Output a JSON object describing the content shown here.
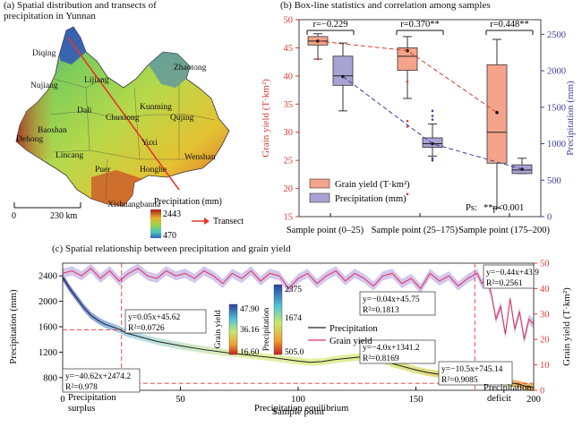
{
  "panel_a": {
    "title_line1": "(a) Spatial distribution and transects of",
    "title_line2": "precipitation in Yunnan",
    "places": [
      "Diqing",
      "Nujiang",
      "Lijiang",
      "Zhaotong",
      "Dali",
      "Kunming",
      "Qujing",
      "Chuxiong",
      "Baoshan",
      "Dehong",
      "Yuxi",
      "Lincang",
      "Wenshan",
      "Honghe",
      "Puer",
      "Xishuangbanna"
    ],
    "scale_bar": {
      "left": "0",
      "right": "230 km"
    },
    "legend_title": "Precipitation (mm)",
    "legend_max": "2443",
    "legend_min": "470",
    "transect_label": "Transect",
    "colors": {
      "transect": "#e8372a",
      "high": "#a21d1d",
      "mid": "#8fd14f",
      "low": "#2f5fbf"
    }
  },
  "panel_b": {
    "title": "(b) Box-line statistics and correlation among samples",
    "ylabel_left": "Grain yield (T·km²)",
    "ylabel_right": "Precipitation (mm)",
    "r_labels": [
      "r=−0.229",
      "r=0.370**",
      "r=0.448**"
    ],
    "legend": [
      "Grain yield (T·km²)",
      "Precipitation (mm)"
    ],
    "ps_note_a": "Ps:",
    "ps_note_b": "**p<0.001",
    "colors": {
      "grain": "#f4a48a",
      "precip": "#a9a3d3",
      "grain_axis": "#d93a2f",
      "precip_axis": "#3b3f98"
    }
  },
  "panel_c": {
    "title": "(c) Spatial relationship between precipitation and grain yield",
    "xlabel": "Sample point",
    "ylabel_left": "Precipitation (mm)",
    "ylabel_right": "Grain yield (T·km²)",
    "legend": [
      "Precipitation",
      "Grain yield"
    ],
    "colorbar_grain": {
      "label": "Grain yield",
      "ticks": [
        "47.90",
        "36.16",
        "16.60"
      ]
    },
    "colorbar_precip": {
      "label": "Precipitation",
      "ticks": [
        "2375",
        "1674",
        "505.0"
      ]
    },
    "annotations": {
      "a1_line1": "y=0.05x+45.62",
      "a1_line2": "R²=0.0726",
      "a2_line1": "y=−40.62x+2474.2",
      "a2_line2": "R²=0.978",
      "a3_line1": "y=−0.04x+45.75",
      "a3_line2": "R²=0.1813",
      "a4_line1": "y=−4.0x+1341.2",
      "a4_line2": "R²=0.8169",
      "a5_line1": "y=−10.5x+745.14",
      "a5_line2": "R²=0.9085",
      "a6_line1": "y=−0.44x+43.9",
      "a6_line2": "R²=0.2561"
    },
    "zone_labels": {
      "surplus_1": "Precipitation",
      "surplus_2": "surplus",
      "equilibrium": "Precipitation equilibrium",
      "deficit_1": "Precipitation",
      "deficit_2": "deficit"
    },
    "colors": {
      "grain_line": "#e0315c",
      "precip_line": "#222222",
      "guide": "#e8372a"
    }
  },
  "chart_data": [
    {
      "type": "box",
      "title": "(b) Box-line statistics and correlation among samples",
      "categories": [
        "Sample point (0–25)",
        "Sample point (25–175)",
        "Sample point (175–200)"
      ],
      "y_left": {
        "label": "Grain yield (T·km²)",
        "lim": [
          15,
          50
        ],
        "ticks": [
          15,
          20,
          25,
          30,
          35,
          40,
          45,
          50
        ]
      },
      "y_right": {
        "label": "Precipitation (mm)",
        "lim": [
          0,
          2700
        ],
        "ticks": [
          0,
          500,
          1000,
          1500,
          2000,
          2500
        ]
      },
      "series": [
        {
          "name": "Grain yield (T·km²)",
          "axis": "left",
          "boxes": [
            {
              "whisker_low": 43,
              "q1": 45.5,
              "median": 46.2,
              "q3": 47,
              "whisker_high": 47.5,
              "mean": 46.2,
              "outliers": [
                43
              ]
            },
            {
              "whisker_low": 36,
              "q1": 41,
              "median": 43.5,
              "q3": 45,
              "whisker_high": 47,
              "mean": 44.5,
              "outliers": [
                39,
                32,
                31,
                19
              ]
            },
            {
              "whisker_low": 16.5,
              "q1": 24.5,
              "median": 30,
              "q3": 42,
              "whisker_high": 46.5,
              "mean": 33.5,
              "outliers": []
            }
          ]
        },
        {
          "name": "Precipitation (mm)",
          "axis": "right",
          "boxes": [
            {
              "whisker_low": 1450,
              "q1": 1800,
              "median": 1930,
              "q3": 2200,
              "whisker_high": 2380,
              "mean": 1920,
              "outliers": []
            },
            {
              "whisker_low": 830,
              "q1": 950,
              "median": 1000,
              "q3": 1080,
              "whisker_high": 1270,
              "mean": 1000,
              "outliers": [
                770,
                800,
                1330,
                1380,
                1450
              ]
            },
            {
              "whisker_low": 590,
              "q1": 590,
              "median": 640,
              "q3": 710,
              "whisker_high": 800,
              "mean": 650,
              "outliers": []
            }
          ]
        }
      ]
    },
    {
      "type": "line",
      "title": "(c) Spatial relationship between precipitation and grain yield",
      "xlabel": "Sample point",
      "xlim": [
        0,
        200
      ],
      "xticks": [
        0,
        50,
        100,
        150,
        200
      ],
      "y_left": {
        "label": "Precipitation (mm)",
        "lim": [
          600,
          2600
        ],
        "ticks": [
          800,
          1200,
          1600,
          2000,
          2400
        ]
      },
      "y_right": {
        "label": "Grain yield (T·km²)",
        "lim": [
          0,
          50
        ],
        "ticks": [
          0,
          10,
          20,
          30,
          40,
          50
        ]
      },
      "guides": {
        "vertical_x": [
          25,
          175
        ],
        "horizontal_precip": [
          1550,
          710
        ]
      },
      "series": [
        {
          "name": "Precipitation",
          "axis": "left",
          "x": [
            0,
            3,
            6,
            9,
            12,
            15,
            18,
            21,
            24,
            27,
            30,
            40,
            50,
            60,
            70,
            80,
            90,
            100,
            105,
            110,
            115,
            120,
            125,
            130,
            135,
            140,
            145,
            150,
            155,
            160,
            165,
            170,
            175,
            178,
            181,
            184,
            187,
            190,
            193,
            196,
            200
          ],
          "y": [
            2380,
            2200,
            2050,
            1900,
            1780,
            1700,
            1640,
            1600,
            1560,
            1500,
            1470,
            1370,
            1300,
            1240,
            1190,
            1150,
            1110,
            1060,
            1040,
            1050,
            1080,
            1100,
            1120,
            1130,
            1100,
            1020,
            970,
            920,
            880,
            850,
            820,
            790,
            800,
            790,
            770,
            760,
            745,
            720,
            700,
            670,
            640
          ]
        },
        {
          "name": "Grain yield",
          "axis": "right",
          "x": [
            0,
            4,
            8,
            12,
            16,
            20,
            24,
            28,
            32,
            36,
            40,
            44,
            48,
            52,
            56,
            60,
            64,
            68,
            72,
            76,
            80,
            84,
            88,
            92,
            96,
            100,
            104,
            108,
            112,
            116,
            120,
            124,
            128,
            132,
            136,
            140,
            144,
            148,
            152,
            156,
            160,
            164,
            168,
            172,
            176,
            178,
            180,
            182,
            184,
            186,
            188,
            190,
            192,
            194,
            196,
            198,
            200
          ],
          "y": [
            46,
            47,
            45,
            48,
            44,
            47,
            43,
            46,
            48,
            45,
            44,
            47,
            45,
            46,
            44,
            47,
            45,
            42,
            46,
            44,
            47,
            43,
            46,
            45,
            40,
            44,
            46,
            42,
            45,
            47,
            43,
            46,
            44,
            41,
            45,
            46,
            42,
            44,
            40,
            46,
            43,
            45,
            41,
            44,
            46,
            42,
            44,
            38,
            28,
            33,
            22,
            36,
            24,
            31,
            20,
            28,
            26
          ]
        }
      ]
    }
  ]
}
